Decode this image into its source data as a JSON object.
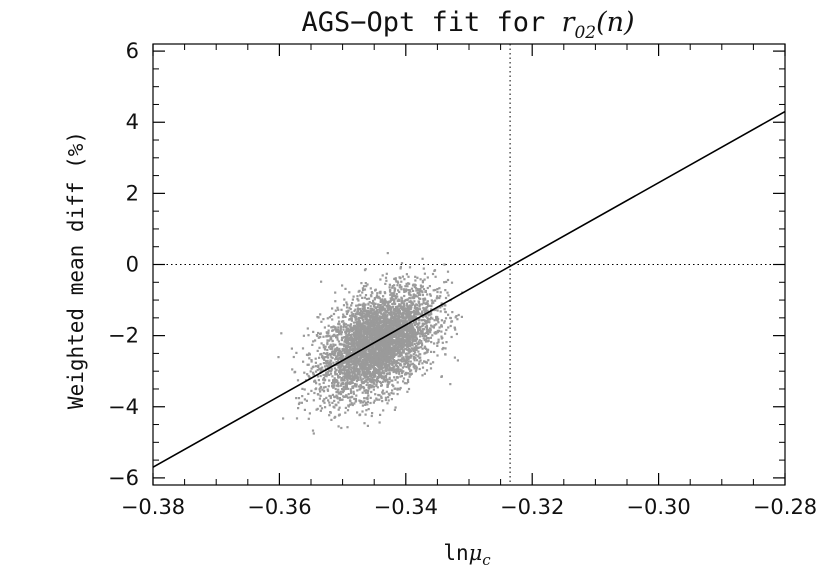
{
  "chart_data": {
    "type": "scatter",
    "title_text": "AGS−Opt fit for ",
    "title_math": "r",
    "title_math_sub": "02",
    "title_math_tail": "(n)",
    "xlabel_prefix": "ln",
    "xlabel_symbol": "μ",
    "xlabel_sub": "c",
    "ylabel": "Weighted mean diff (%)",
    "xlim": [
      -0.38,
      -0.28
    ],
    "ylim": [
      -6.2,
      6.2
    ],
    "xticks": [
      -0.38,
      -0.36,
      -0.34,
      -0.32,
      -0.3,
      -0.28
    ],
    "xtick_labels": [
      "−0.38",
      "−0.36",
      "−0.34",
      "−0.32",
      "−0.30",
      "−0.28"
    ],
    "yticks": [
      -6,
      -4,
      -2,
      0,
      2,
      4,
      6
    ],
    "ytick_labels": [
      "−6",
      "−4",
      "−2",
      "0",
      "2",
      "4",
      "6"
    ],
    "reference_lines": {
      "x": -0.3235,
      "y": 0
    },
    "fit_line": {
      "x": [
        -0.38,
        -0.28
      ],
      "y": [
        -5.7,
        4.3
      ]
    },
    "scatter_cloud": {
      "center": [
        -0.3445,
        -2.2
      ],
      "sd": [
        0.0045,
        0.75
      ],
      "correlation": 0.45,
      "x_range": [
        -0.361,
        -0.331
      ],
      "y_range": [
        -4.8,
        0.6
      ],
      "n_points": 4500
    },
    "colors": {
      "points": "#9a9a9a",
      "line": "#000000",
      "axes": "#000000"
    },
    "grid": false
  }
}
